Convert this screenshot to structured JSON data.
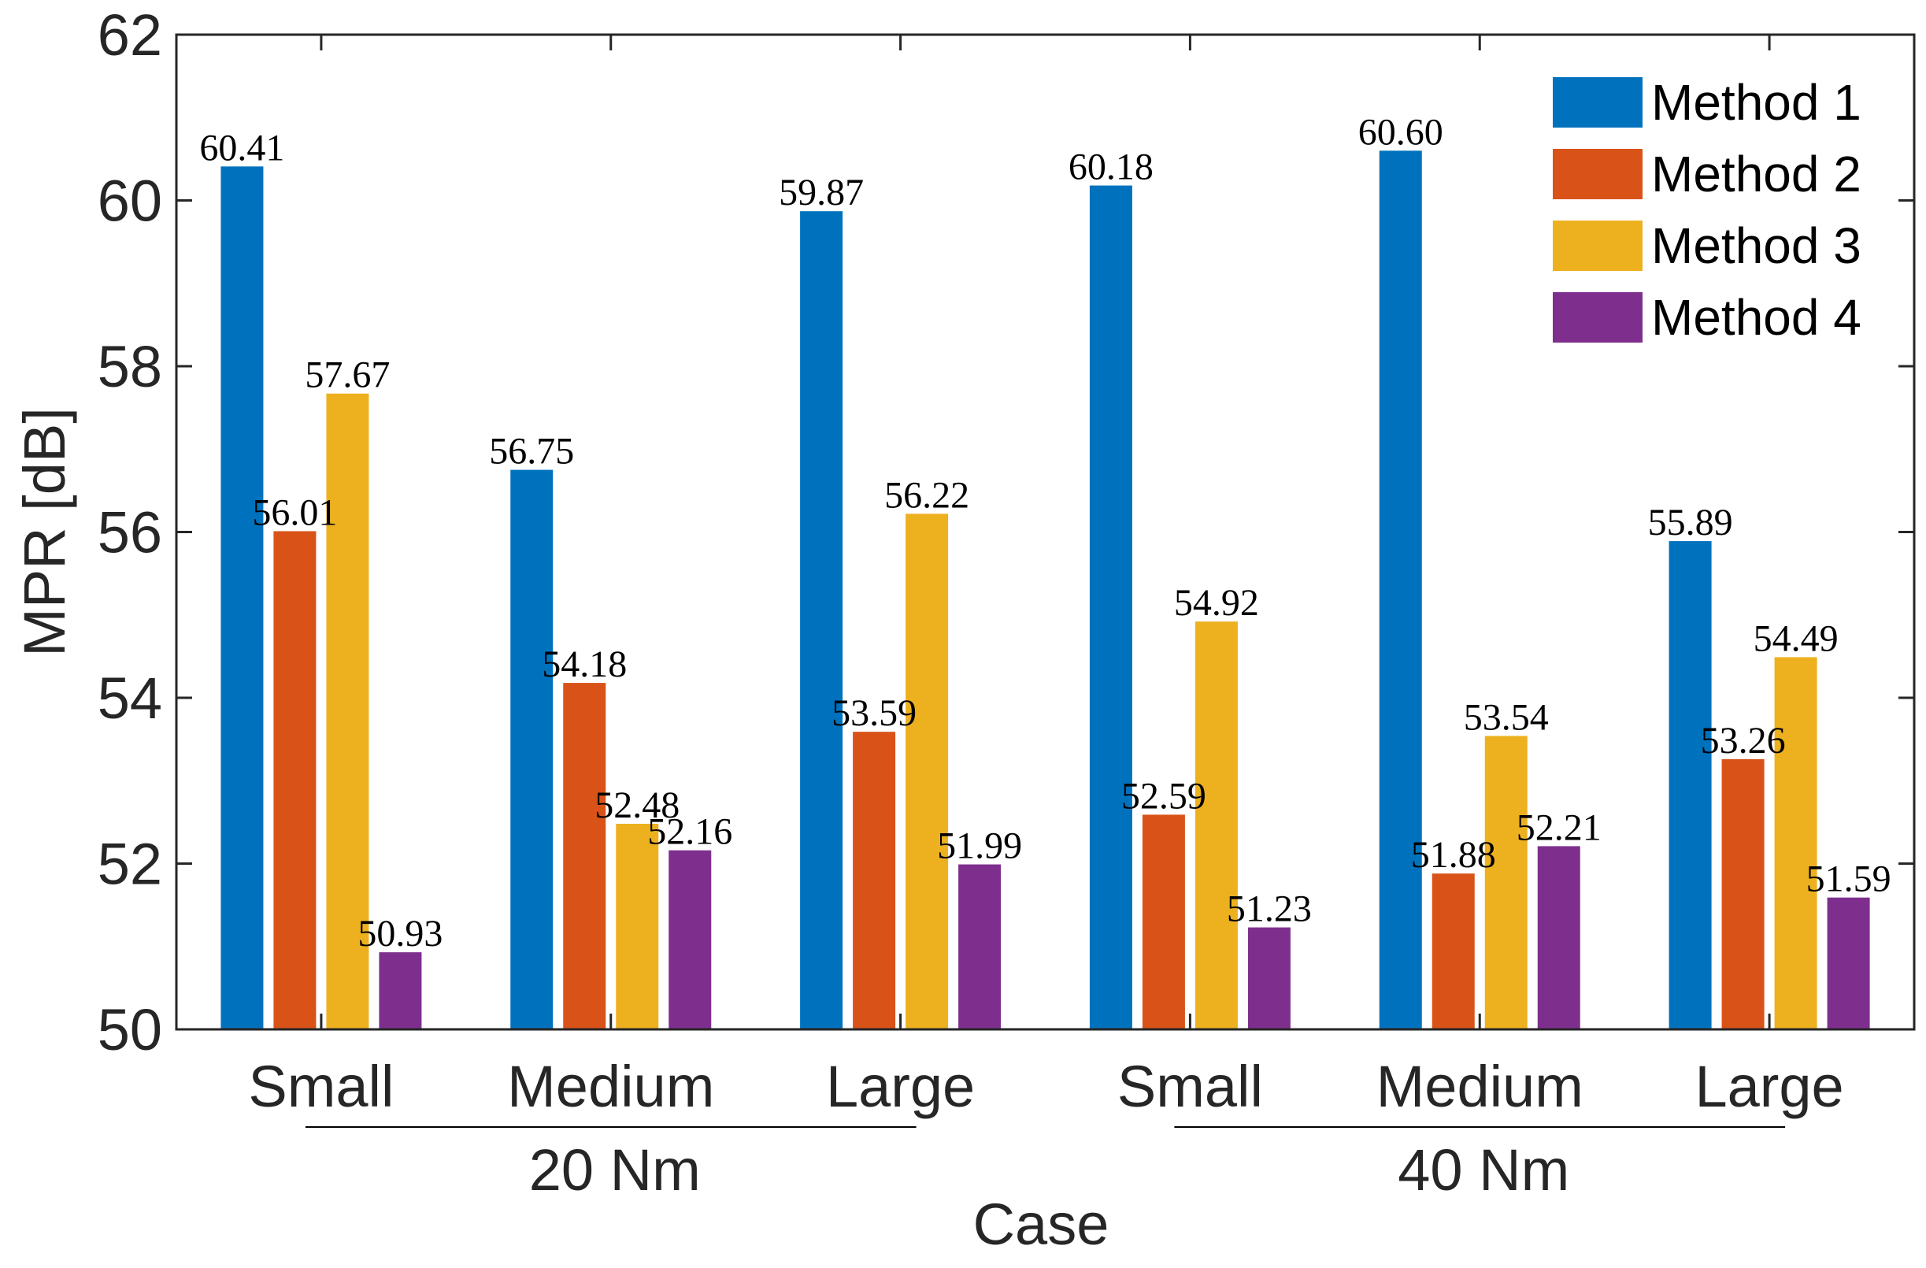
{
  "chart_data": {
    "type": "bar",
    "title": "",
    "xlabel": "Case",
    "ylabel": "MPR [dB]",
    "ylim": [
      50,
      62
    ],
    "yticks": [
      "50",
      "52",
      "54",
      "56",
      "58",
      "60",
      "62"
    ],
    "grid": false,
    "legend_position": "top-right",
    "categories": [
      "Small",
      "Medium",
      "Large",
      "Small",
      "Medium",
      "Large"
    ],
    "groups": [
      {
        "label": "20 Nm",
        "from": 0,
        "to": 2
      },
      {
        "label": "40 Nm",
        "from": 3,
        "to": 5
      }
    ],
    "series": [
      {
        "name": "Method 1",
        "color": "#0072BD",
        "values": [
          60.41,
          56.75,
          59.87,
          60.18,
          60.6,
          55.89
        ],
        "labels": [
          "60.41",
          "56.75",
          "59.87",
          "60.18",
          "60.60",
          "55.89"
        ]
      },
      {
        "name": "Method 2",
        "color": "#D95319",
        "values": [
          56.01,
          54.18,
          53.59,
          52.59,
          51.88,
          53.26
        ],
        "labels": [
          "56.01",
          "54.18",
          "53.59",
          "52.59",
          "51.88",
          "53.26"
        ]
      },
      {
        "name": "Method 3",
        "color": "#EDB120",
        "values": [
          57.67,
          52.48,
          56.22,
          54.92,
          53.54,
          54.49
        ],
        "labels": [
          "57.67",
          "52.48",
          "56.22",
          "54.92",
          "53.54",
          "54.49"
        ]
      },
      {
        "name": "Method 4",
        "color": "#7E2F8E",
        "values": [
          50.93,
          52.16,
          51.99,
          51.23,
          52.21,
          51.59
        ],
        "labels": [
          "50.93",
          "52.16",
          "51.99",
          "51.23",
          "52.21",
          "51.59"
        ]
      }
    ]
  }
}
